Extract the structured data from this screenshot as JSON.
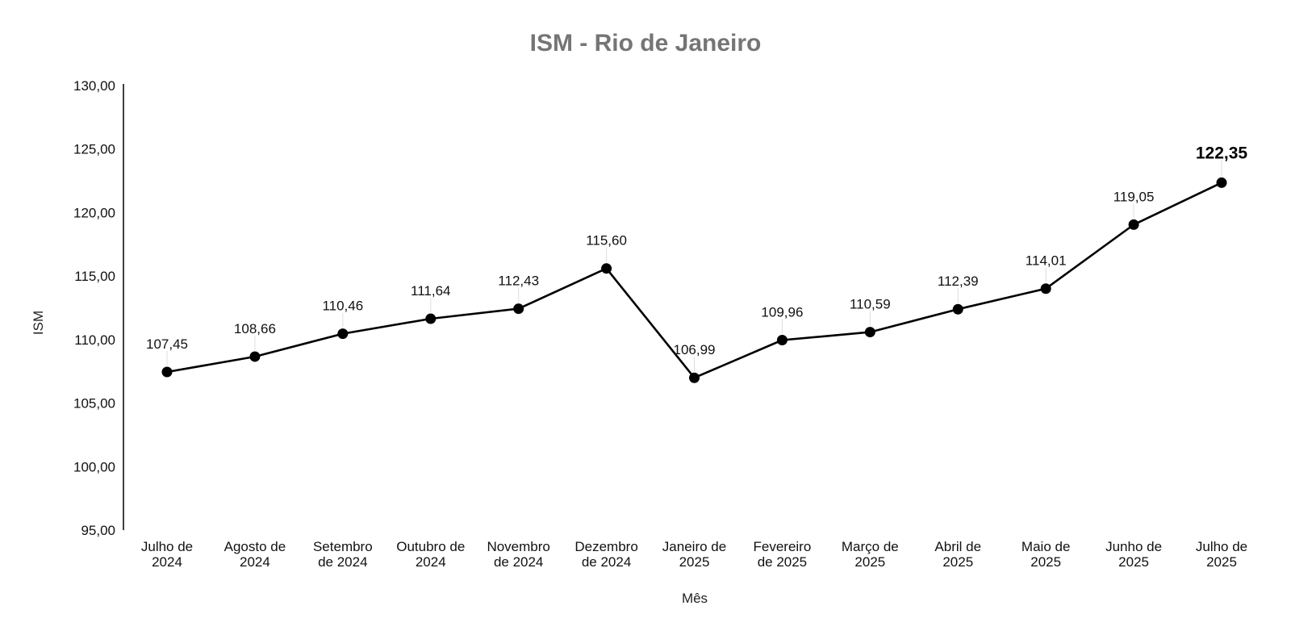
{
  "chart_data": {
    "type": "line",
    "title": "ISM - Rio de Janeiro",
    "xlabel": "Mês",
    "ylabel": "ISM",
    "ylim": [
      95,
      130
    ],
    "yticks": [
      "95,00",
      "100,00",
      "105,00",
      "110,00",
      "115,00",
      "120,00",
      "125,00",
      "130,00"
    ],
    "categories": [
      [
        "Julho de",
        "2024"
      ],
      [
        "Agosto de",
        "2024"
      ],
      [
        "Setembro",
        "de 2024"
      ],
      [
        "Outubro de",
        "2024"
      ],
      [
        "Novembro",
        "de 2024"
      ],
      [
        "Dezembro",
        "de 2024"
      ],
      [
        "Janeiro de",
        "2025"
      ],
      [
        "Fevereiro",
        "de 2025"
      ],
      [
        "Março de",
        "2025"
      ],
      [
        "Abril de",
        "2025"
      ],
      [
        "Maio de",
        "2025"
      ],
      [
        "Junho de",
        "2025"
      ],
      [
        "Julho de",
        "2025"
      ]
    ],
    "series": [
      {
        "name": "ISM",
        "values": [
          107.45,
          108.66,
          110.46,
          111.64,
          112.43,
          115.6,
          106.99,
          109.96,
          110.59,
          112.39,
          114.01,
          119.05,
          122.35
        ],
        "labels": [
          "107,45",
          "108,66",
          "110,46",
          "111,64",
          "112,43",
          "115,60",
          "106,99",
          "109,96",
          "110,59",
          "112,39",
          "114,01",
          "119,05",
          "122,35"
        ],
        "highlight_last": true,
        "color": "#000000"
      }
    ],
    "grid": false,
    "legend": "none"
  }
}
